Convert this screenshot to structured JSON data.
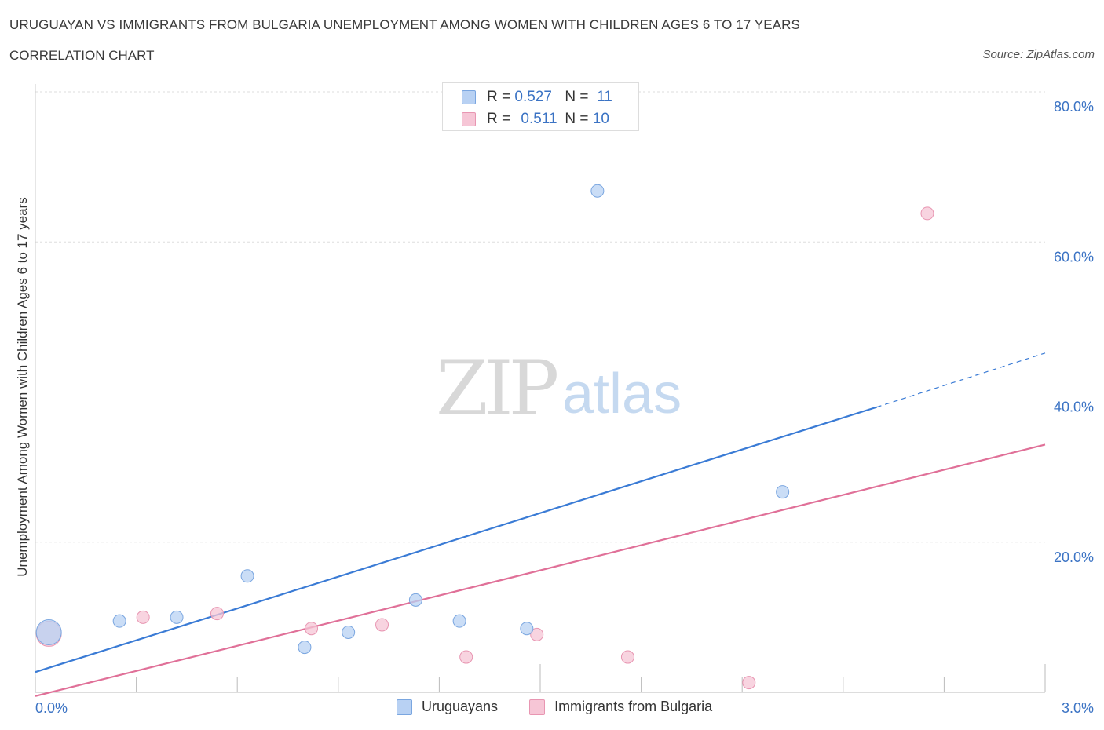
{
  "header": {
    "title": "URUGUAYAN VS IMMIGRANTS FROM BULGARIA UNEMPLOYMENT AMONG WOMEN WITH CHILDREN AGES 6 TO 17 YEARS",
    "subtitle": "CORRELATION CHART",
    "source": "Source: ZipAtlas.com"
  },
  "watermark": {
    "zip": "ZIP",
    "atlas": "atlas"
  },
  "legend": {
    "r_label": "R =",
    "n_label": "N =",
    "series": [
      {
        "r": "0.527",
        "n": "11"
      },
      {
        "r": "0.511",
        "n": "10"
      }
    ]
  },
  "chart_data": {
    "type": "scatter",
    "title": "URUGUAYAN VS IMMIGRANTS FROM BULGARIA UNEMPLOYMENT AMONG WOMEN WITH CHILDREN AGES 6 TO 17 YEARS",
    "xlabel": "",
    "ylabel": "Unemployment Among Women with Children Ages 6 to 17 years",
    "xlim": [
      0,
      3.0
    ],
    "ylim": [
      0,
      80
    ],
    "x_tick_labels": [
      "0.0%",
      "3.0%"
    ],
    "y_tick_values": [
      20,
      40,
      60,
      80
    ],
    "y_tick_labels": [
      "20.0%",
      "40.0%",
      "60.0%",
      "80.0%"
    ],
    "grid": true,
    "legend_position": "bottom",
    "colors": {
      "Uruguayans": "#3a7bd5",
      "Immigrants from Bulgaria": "#e07098",
      "Uruguayans_fill": "#b8d1f3",
      "Immigrants from Bulgaria_fill": "#f6c6d6",
      "tick_label": "#3b73c4"
    },
    "series": [
      {
        "name": "Uruguayans",
        "points": [
          {
            "x": 0.04,
            "y": 8.0,
            "size": "large"
          },
          {
            "x": 0.25,
            "y": 9.5
          },
          {
            "x": 0.42,
            "y": 10.0
          },
          {
            "x": 0.63,
            "y": 15.5
          },
          {
            "x": 0.8,
            "y": 6.0
          },
          {
            "x": 0.93,
            "y": 8.0
          },
          {
            "x": 1.13,
            "y": 12.3
          },
          {
            "x": 1.26,
            "y": 9.5
          },
          {
            "x": 1.46,
            "y": 8.5
          },
          {
            "x": 1.67,
            "y": 66.8
          },
          {
            "x": 2.22,
            "y": 26.7
          }
        ],
        "trend": {
          "x0": 0,
          "y0": 2.7,
          "x1": 2.5,
          "y1": 38.0,
          "dash_to_x": 3.0,
          "dash_to_y": 45.2
        }
      },
      {
        "name": "Immigrants from Bulgaria",
        "points": [
          {
            "x": 0.04,
            "y": 7.8,
            "size": "large"
          },
          {
            "x": 0.32,
            "y": 10.0
          },
          {
            "x": 0.54,
            "y": 10.5
          },
          {
            "x": 0.82,
            "y": 8.5
          },
          {
            "x": 1.03,
            "y": 9.0
          },
          {
            "x": 1.28,
            "y": 4.7
          },
          {
            "x": 1.49,
            "y": 7.7
          },
          {
            "x": 1.76,
            "y": 4.7
          },
          {
            "x": 2.12,
            "y": 1.3
          },
          {
            "x": 2.65,
            "y": 63.8
          }
        ],
        "trend": {
          "x0": 0,
          "y0": -0.5,
          "x1": 3.0,
          "y1": 33.0
        }
      }
    ]
  }
}
